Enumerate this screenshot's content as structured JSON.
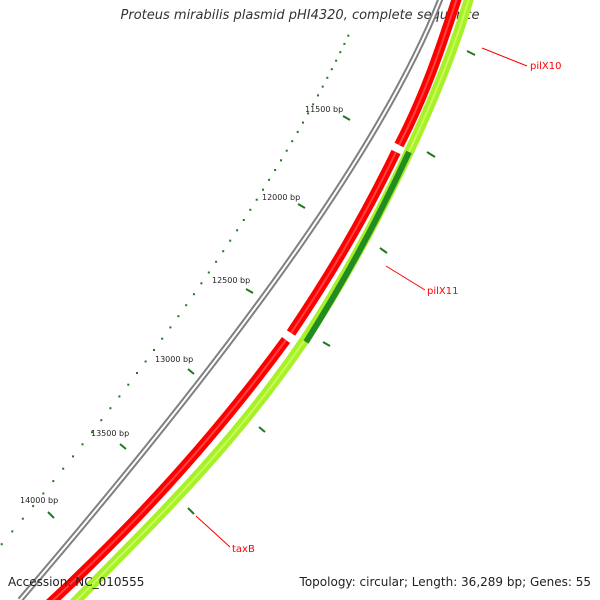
{
  "map": {
    "title": "Proteus mirabilis plasmid pHI4320, complete sequence",
    "accession": "Accession: NC_010555",
    "summary": "Topology: circular; Length: 36,289 bp; Genes: 55"
  },
  "scale_ticks": [
    {
      "label": "11500 bp"
    },
    {
      "label": "12000 bp"
    },
    {
      "label": "12500 bp"
    },
    {
      "label": "13000 bp"
    },
    {
      "label": "13500 bp"
    },
    {
      "label": "14000 bp"
    }
  ],
  "gene_labels": [
    {
      "label": "pilX10"
    },
    {
      "label": "pilX11"
    },
    {
      "label": "taxB"
    }
  ],
  "colors": {
    "backbone": "#808080",
    "gene_forward": "#ff0000",
    "gene_forward_highlight": "#ff5a5a",
    "gene_reverse_track": "#a8f028",
    "gene_reverse_highlight": "#ccff66",
    "gene_overlap": "#228b22",
    "tick": "#1f7a1f",
    "label": "#ff0000"
  }
}
